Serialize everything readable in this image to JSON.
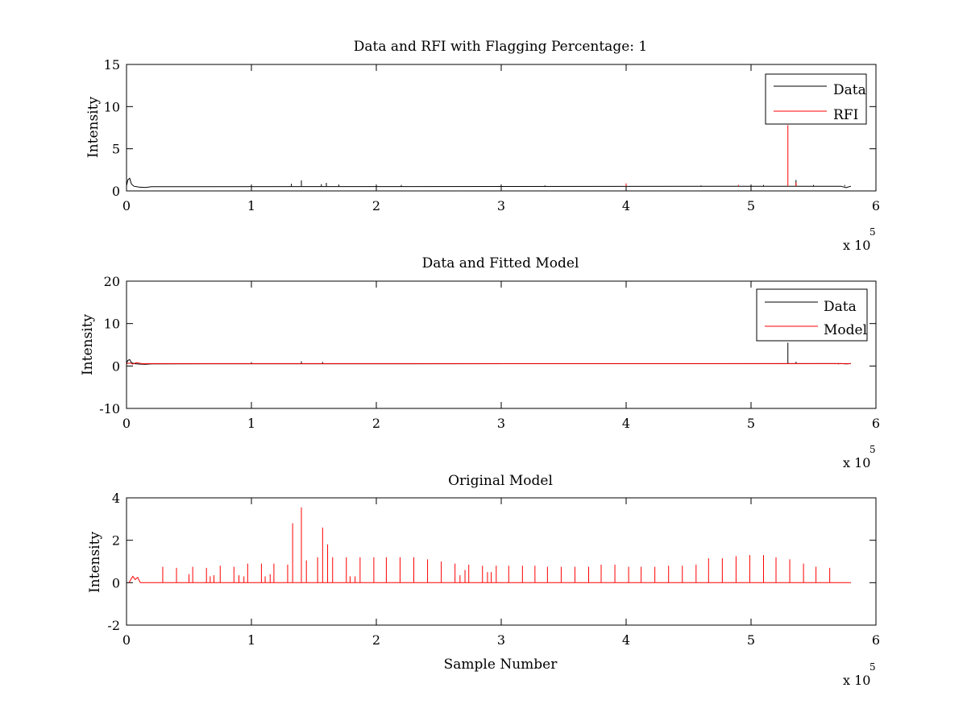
{
  "colors": {
    "data": "#000000",
    "red": "#ff0000",
    "axes": "#000000",
    "background": "#ffffff"
  },
  "chart_data": [
    {
      "type": "line",
      "title": "Data and RFI with Flagging Percentage: 1",
      "xlabel": "",
      "ylabel": "Intensity",
      "xlim": [
        0,
        600000
      ],
      "ylim": [
        0,
        15
      ],
      "xticks": [
        0,
        1,
        2,
        3,
        4,
        5,
        6
      ],
      "xtick_labels": [
        "0",
        "1",
        "2",
        "3",
        "4",
        "5",
        "6"
      ],
      "yticks": [
        0,
        5,
        10,
        15
      ],
      "ytick_labels": [
        "0",
        "5",
        "10",
        "15"
      ],
      "x_multiplier": {
        "base": "x 10",
        "exponent": "5"
      },
      "legend": {
        "position": "top-right",
        "entries": [
          "Data",
          "RFI"
        ]
      },
      "series": [
        {
          "name": "Data",
          "color": "#000000",
          "baseline": 0.55,
          "start_hump": [
            [
              0,
              0.6
            ],
            [
              1000,
              1.3
            ],
            [
              2500,
              1.5
            ],
            [
              4000,
              0.8
            ],
            [
              6000,
              0.55
            ],
            [
              10000,
              0.45
            ],
            [
              15000,
              0.4
            ],
            [
              20000,
              0.5
            ]
          ],
          "spikes": [
            [
              132000,
              0.85
            ],
            [
              140000,
              1.25
            ],
            [
              156000,
              0.8
            ],
            [
              160000,
              0.95
            ],
            [
              170000,
              0.75
            ],
            [
              220000,
              0.7
            ],
            [
              300000,
              0.7
            ],
            [
              335000,
              0.65
            ],
            [
              400000,
              0.75
            ],
            [
              460000,
              0.65
            ],
            [
              510000,
              0.7
            ],
            [
              536000,
              1.3
            ],
            [
              550000,
              0.7
            ],
            [
              575000,
              0.7
            ]
          ],
          "end_x": 580000,
          "end_value": 0.4
        },
        {
          "name": "RFI",
          "color": "#ff0000",
          "spikes": [
            [
              400000,
              0.9
            ],
            [
              490000,
              0.7
            ],
            [
              529500,
              7.8
            ],
            [
              536000,
              1.0
            ]
          ]
        }
      ]
    },
    {
      "type": "line",
      "title": "Data and Fitted Model",
      "xlabel": "",
      "ylabel": "Intensity",
      "xlim": [
        0,
        600000
      ],
      "ylim": [
        -10,
        20
      ],
      "xticks": [
        0,
        1,
        2,
        3,
        4,
        5,
        6
      ],
      "xtick_labels": [
        "0",
        "1",
        "2",
        "3",
        "4",
        "5",
        "6"
      ],
      "yticks": [
        -10,
        0,
        10,
        20
      ],
      "ytick_labels": [
        "-10",
        "0",
        "10",
        "20"
      ],
      "x_multiplier": {
        "base": "x 10",
        "exponent": "5"
      },
      "legend": {
        "position": "top-right",
        "entries": [
          "Data",
          "Model"
        ]
      },
      "series": [
        {
          "name": "Data",
          "color": "#000000",
          "baseline": 0.55,
          "start_hump": [
            [
              0,
              0.6
            ],
            [
              1000,
              1.3
            ],
            [
              2500,
              1.5
            ],
            [
              4000,
              0.8
            ],
            [
              6000,
              0.55
            ],
            [
              10000,
              0.45
            ],
            [
              15000,
              0.4
            ],
            [
              20000,
              0.5
            ]
          ],
          "spikes": [
            [
              100000,
              0.9
            ],
            [
              140000,
              1.1
            ],
            [
              157000,
              0.95
            ],
            [
              529500,
              5.5
            ],
            [
              536000,
              1.0
            ],
            [
              570000,
              0.4
            ]
          ],
          "end_x": 580000,
          "end_value": 0.5
        },
        {
          "name": "Model",
          "color": "#ff0000",
          "baseline": 0.55,
          "start_hump": [
            [
              0,
              0.55
            ],
            [
              3000,
              0.7
            ],
            [
              5000,
              0.45
            ],
            [
              8000,
              0.8
            ],
            [
              12000,
              0.55
            ]
          ],
          "spikes": [],
          "end_x": 580000,
          "end_value": 0.55
        }
      ]
    },
    {
      "type": "line",
      "title": "Original Model",
      "xlabel": "Sample Number",
      "ylabel": "Intensity",
      "xlim": [
        0,
        600000
      ],
      "ylim": [
        -2,
        4
      ],
      "xticks": [
        0,
        1,
        2,
        3,
        4,
        5,
        6
      ],
      "xtick_labels": [
        "0",
        "1",
        "2",
        "3",
        "4",
        "5",
        "6"
      ],
      "yticks": [
        -2,
        0,
        2,
        4
      ],
      "ytick_labels": [
        "-2",
        "0",
        "2",
        "4"
      ],
      "x_multiplier": {
        "base": "x 10",
        "exponent": "5"
      },
      "legend": null,
      "series": [
        {
          "color": "#ff0000",
          "baseline": 0,
          "start_hump": [
            [
              2000,
              0
            ],
            [
              5000,
              0.3
            ],
            [
              7000,
              0.15
            ],
            [
              9000,
              0.25
            ],
            [
              11000,
              0
            ]
          ],
          "spikes": [
            [
              29000,
              0.75
            ],
            [
              40000,
              0.7
            ],
            [
              50000,
              0.4
            ],
            [
              53000,
              0.75
            ],
            [
              64000,
              0.7
            ],
            [
              67000,
              0.3
            ],
            [
              70000,
              0.35
            ],
            [
              75000,
              0.8
            ],
            [
              86000,
              0.75
            ],
            [
              90000,
              0.35
            ],
            [
              94000,
              0.3
            ],
            [
              97000,
              0.9
            ],
            [
              108000,
              0.9
            ],
            [
              111000,
              0.3
            ],
            [
              115000,
              0.4
            ],
            [
              118000,
              0.9
            ],
            [
              129000,
              0.85
            ],
            [
              133000,
              2.8
            ],
            [
              140000,
              3.55
            ],
            [
              144000,
              1.05
            ],
            [
              153000,
              1.2
            ],
            [
              157000,
              2.6
            ],
            [
              161000,
              1.8
            ],
            [
              165000,
              1.2
            ],
            [
              176000,
              1.2
            ],
            [
              179000,
              0.3
            ],
            [
              183000,
              0.3
            ],
            [
              187000,
              1.2
            ],
            [
              198000,
              1.2
            ],
            [
              208000,
              1.2
            ],
            [
              219000,
              1.2
            ],
            [
              230000,
              1.2
            ],
            [
              241000,
              1.1
            ],
            [
              252000,
              1.0
            ],
            [
              263000,
              0.9
            ],
            [
              267000,
              0.35
            ],
            [
              271000,
              0.6
            ],
            [
              274000,
              0.85
            ],
            [
              285000,
              0.8
            ],
            [
              289000,
              0.5
            ],
            [
              292000,
              0.5
            ],
            [
              296000,
              0.8
            ],
            [
              306000,
              0.8
            ],
            [
              317000,
              0.8
            ],
            [
              327000,
              0.8
            ],
            [
              337000,
              0.75
            ],
            [
              348000,
              0.75
            ],
            [
              359000,
              0.75
            ],
            [
              370000,
              0.75
            ],
            [
              380000,
              0.85
            ],
            [
              391000,
              0.85
            ],
            [
              402000,
              0.75
            ],
            [
              412000,
              0.75
            ],
            [
              423000,
              0.75
            ],
            [
              434000,
              0.8
            ],
            [
              445000,
              0.8
            ],
            [
              456000,
              0.85
            ],
            [
              466000,
              1.15
            ],
            [
              477000,
              1.15
            ],
            [
              488000,
              1.25
            ],
            [
              499000,
              1.3
            ],
            [
              510000,
              1.3
            ],
            [
              520000,
              1.2
            ],
            [
              531000,
              1.1
            ],
            [
              542000,
              0.9
            ],
            [
              552000,
              0.75
            ],
            [
              563000,
              0.7
            ]
          ],
          "end_x": 580000,
          "end_value": 0
        }
      ]
    }
  ]
}
